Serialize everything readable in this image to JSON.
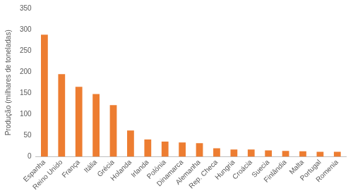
{
  "chart_data": {
    "type": "bar",
    "y_label": "Produção (milhares de toneladas)",
    "categories": [
      "Espanha",
      "Reino Unido",
      "França",
      "Itália",
      "Grécia",
      "Holanda",
      "Irlanda",
      "Polónia",
      "Dinamarca",
      "Alemanha",
      "Rep. Checa",
      "Hungria",
      "Croácia",
      "Suecia",
      "Finlândia",
      "Malta",
      "Portugal",
      "Romenia"
    ],
    "values": [
      288,
      195,
      165,
      148,
      122,
      62,
      41,
      36,
      34,
      32,
      20,
      17,
      17,
      15,
      14,
      13,
      12,
      12
    ],
    "color": "#ed7d31",
    "ylim": [
      0,
      350
    ],
    "yticks": [
      0,
      50,
      100,
      150,
      200,
      250,
      300,
      350
    ],
    "grid": false
  }
}
